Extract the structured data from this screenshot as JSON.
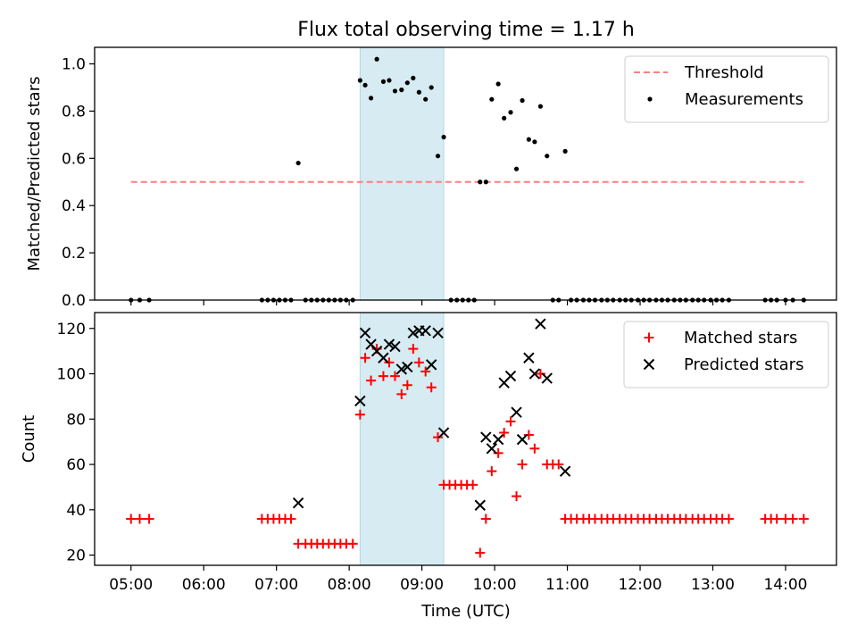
{
  "chart_data": {
    "type": "scatter",
    "title": "Flux total observing time = 1.17 h",
    "xlabel": "Time (UTC)",
    "x_unit": "hours UTC",
    "xlim": [
      4.5,
      14.7
    ],
    "x_ticks": [
      5,
      6,
      7,
      8,
      9,
      10,
      11,
      12,
      13,
      14
    ],
    "x_tick_labels": [
      "05:00",
      "06:00",
      "07:00",
      "08:00",
      "09:00",
      "10:00",
      "11:00",
      "12:00",
      "13:00",
      "14:00"
    ],
    "highlight_span": [
      8.15,
      9.3
    ],
    "panels": [
      {
        "id": "ratio",
        "ylabel": "Matched/Predicted stars",
        "ylim": [
          0,
          1.07
        ],
        "y_ticks": [
          0.0,
          0.2,
          0.4,
          0.6,
          0.8,
          1.0
        ],
        "y_tick_labels": [
          "0.0",
          "0.2",
          "0.4",
          "0.6",
          "0.8",
          "1.0"
        ],
        "legend_position": "top-right",
        "threshold": {
          "name": "Threshold",
          "value": 0.5,
          "x_range": [
            5.0,
            14.25
          ],
          "color": "#ff7f7f"
        },
        "series": [
          {
            "name": "Measurements",
            "color": "#000000",
            "marker": "dot",
            "points": [
              [
                5.0,
                0
              ],
              [
                5.12,
                0
              ],
              [
                5.25,
                0
              ],
              [
                6.8,
                0
              ],
              [
                6.88,
                0
              ],
              [
                6.96,
                0
              ],
              [
                7.04,
                0
              ],
              [
                7.12,
                0
              ],
              [
                7.2,
                0
              ],
              [
                7.3,
                0.58
              ],
              [
                7.4,
                0
              ],
              [
                7.48,
                0
              ],
              [
                7.56,
                0
              ],
              [
                7.64,
                0
              ],
              [
                7.72,
                0
              ],
              [
                7.8,
                0
              ],
              [
                7.88,
                0
              ],
              [
                7.96,
                0
              ],
              [
                8.05,
                0
              ],
              [
                8.15,
                0.93
              ],
              [
                8.22,
                0.91
              ],
              [
                8.3,
                0.855
              ],
              [
                8.38,
                1.02
              ],
              [
                8.47,
                0.925
              ],
              [
                8.55,
                0.93
              ],
              [
                8.63,
                0.885
              ],
              [
                8.72,
                0.89
              ],
              [
                8.8,
                0.92
              ],
              [
                8.88,
                0.94
              ],
              [
                8.96,
                0.88
              ],
              [
                9.05,
                0.85
              ],
              [
                9.13,
                0.9
              ],
              [
                9.22,
                0.61
              ],
              [
                9.3,
                0.69
              ],
              [
                9.4,
                0
              ],
              [
                9.48,
                0
              ],
              [
                9.56,
                0
              ],
              [
                9.64,
                0
              ],
              [
                9.72,
                0
              ],
              [
                9.8,
                0.5
              ],
              [
                9.88,
                0.5
              ],
              [
                9.96,
                0.85
              ],
              [
                10.05,
                0.915
              ],
              [
                10.13,
                0.77
              ],
              [
                10.22,
                0.795
              ],
              [
                10.3,
                0.555
              ],
              [
                10.38,
                0.845
              ],
              [
                10.47,
                0.68
              ],
              [
                10.55,
                0.67
              ],
              [
                10.63,
                0.82
              ],
              [
                10.72,
                0.61
              ],
              [
                10.8,
                0
              ],
              [
                10.88,
                0
              ],
              [
                10.97,
                0.63
              ],
              [
                11.05,
                0
              ],
              [
                11.13,
                0
              ],
              [
                11.22,
                0
              ],
              [
                11.3,
                0
              ],
              [
                11.38,
                0
              ],
              [
                11.47,
                0
              ],
              [
                11.55,
                0
              ],
              [
                11.63,
                0
              ],
              [
                11.72,
                0
              ],
              [
                11.8,
                0
              ],
              [
                11.88,
                0
              ],
              [
                11.97,
                0
              ],
              [
                12.05,
                0
              ],
              [
                12.13,
                0
              ],
              [
                12.22,
                0
              ],
              [
                12.3,
                0
              ],
              [
                12.38,
                0
              ],
              [
                12.47,
                0
              ],
              [
                12.55,
                0
              ],
              [
                12.63,
                0
              ],
              [
                12.72,
                0
              ],
              [
                12.8,
                0
              ],
              [
                12.88,
                0
              ],
              [
                12.97,
                0
              ],
              [
                13.05,
                0
              ],
              [
                13.13,
                0
              ],
              [
                13.22,
                0
              ],
              [
                13.72,
                0
              ],
              [
                13.8,
                0
              ],
              [
                13.88,
                0
              ],
              [
                14.0,
                0
              ],
              [
                14.1,
                0
              ],
              [
                14.25,
                0
              ]
            ]
          }
        ]
      },
      {
        "id": "counts",
        "ylabel": "Count",
        "ylim": [
          15.5,
          127
        ],
        "y_ticks": [
          20,
          40,
          60,
          80,
          100,
          120
        ],
        "y_tick_labels": [
          "20",
          "40",
          "60",
          "80",
          "100",
          "120"
        ],
        "legend_position": "top-right",
        "series": [
          {
            "name": "Matched stars",
            "color": "#ff0000",
            "marker": "plus",
            "points": [
              [
                5.0,
                36
              ],
              [
                5.12,
                36
              ],
              [
                5.25,
                36
              ],
              [
                6.8,
                36
              ],
              [
                6.88,
                36
              ],
              [
                6.96,
                36
              ],
              [
                7.04,
                36
              ],
              [
                7.12,
                36
              ],
              [
                7.2,
                36
              ],
              [
                7.3,
                25
              ],
              [
                7.4,
                25
              ],
              [
                7.48,
                25
              ],
              [
                7.56,
                25
              ],
              [
                7.64,
                25
              ],
              [
                7.72,
                25
              ],
              [
                7.8,
                25
              ],
              [
                7.88,
                25
              ],
              [
                7.96,
                25
              ],
              [
                8.05,
                25
              ],
              [
                8.15,
                82
              ],
              [
                8.22,
                107
              ],
              [
                8.3,
                97
              ],
              [
                8.38,
                111
              ],
              [
                8.47,
                99
              ],
              [
                8.55,
                105
              ],
              [
                8.63,
                99
              ],
              [
                8.72,
                91
              ],
              [
                8.8,
                95
              ],
              [
                8.88,
                111
              ],
              [
                8.96,
                105
              ],
              [
                9.05,
                101
              ],
              [
                9.13,
                94
              ],
              [
                9.22,
                72
              ],
              [
                9.3,
                51
              ],
              [
                9.38,
                51
              ],
              [
                9.46,
                51
              ],
              [
                9.54,
                51
              ],
              [
                9.62,
                51
              ],
              [
                9.7,
                51
              ],
              [
                9.8,
                21
              ],
              [
                9.88,
                36
              ],
              [
                9.96,
                57
              ],
              [
                10.05,
                65
              ],
              [
                10.13,
                74
              ],
              [
                10.22,
                79
              ],
              [
                10.3,
                46
              ],
              [
                10.38,
                60
              ],
              [
                10.47,
                73
              ],
              [
                10.55,
                67
              ],
              [
                10.63,
                100
              ],
              [
                10.72,
                60
              ],
              [
                10.8,
                60
              ],
              [
                10.88,
                60
              ],
              [
                10.97,
                36
              ],
              [
                11.05,
                36
              ],
              [
                11.13,
                36
              ],
              [
                11.22,
                36
              ],
              [
                11.3,
                36
              ],
              [
                11.38,
                36
              ],
              [
                11.47,
                36
              ],
              [
                11.55,
                36
              ],
              [
                11.63,
                36
              ],
              [
                11.72,
                36
              ],
              [
                11.8,
                36
              ],
              [
                11.88,
                36
              ],
              [
                11.97,
                36
              ],
              [
                12.05,
                36
              ],
              [
                12.13,
                36
              ],
              [
                12.22,
                36
              ],
              [
                12.3,
                36
              ],
              [
                12.38,
                36
              ],
              [
                12.47,
                36
              ],
              [
                12.55,
                36
              ],
              [
                12.63,
                36
              ],
              [
                12.72,
                36
              ],
              [
                12.8,
                36
              ],
              [
                12.88,
                36
              ],
              [
                12.97,
                36
              ],
              [
                13.05,
                36
              ],
              [
                13.13,
                36
              ],
              [
                13.22,
                36
              ],
              [
                13.72,
                36
              ],
              [
                13.8,
                36
              ],
              [
                13.88,
                36
              ],
              [
                14.0,
                36
              ],
              [
                14.1,
                36
              ],
              [
                14.25,
                36
              ]
            ]
          },
          {
            "name": "Predicted stars",
            "color": "#000000",
            "marker": "x",
            "points": [
              [
                7.3,
                43
              ],
              [
                8.15,
                88
              ],
              [
                8.22,
                118
              ],
              [
                8.3,
                113
              ],
              [
                8.38,
                110
              ],
              [
                8.47,
                107
              ],
              [
                8.55,
                113
              ],
              [
                8.63,
                112
              ],
              [
                8.72,
                102
              ],
              [
                8.8,
                103
              ],
              [
                8.88,
                118
              ],
              [
                8.96,
                119
              ],
              [
                9.05,
                119
              ],
              [
                9.13,
                104
              ],
              [
                9.22,
                118
              ],
              [
                9.3,
                74
              ],
              [
                9.8,
                42
              ],
              [
                9.88,
                72
              ],
              [
                9.96,
                67
              ],
              [
                10.05,
                71
              ],
              [
                10.13,
                96
              ],
              [
                10.22,
                99
              ],
              [
                10.3,
                83
              ],
              [
                10.38,
                71
              ],
              [
                10.47,
                107
              ],
              [
                10.55,
                100
              ],
              [
                10.63,
                122
              ],
              [
                10.72,
                98
              ],
              [
                10.97,
                57
              ]
            ]
          }
        ]
      }
    ]
  }
}
